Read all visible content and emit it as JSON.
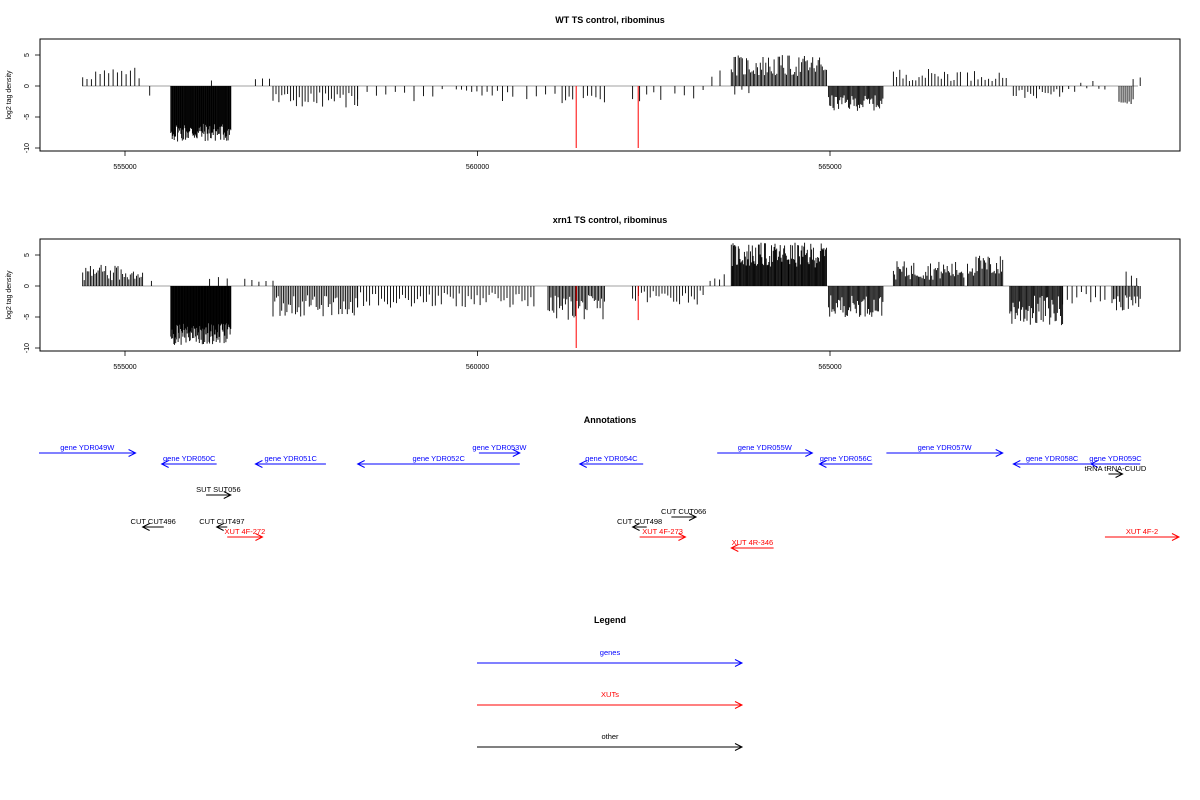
{
  "colors": {
    "genes": "#0000ff",
    "xuts": "#ff0000",
    "other": "#000000",
    "bars": "#000000",
    "red_bars": "#ff0000",
    "zero_line": "#a0a0a0"
  },
  "chart_data": [
    {
      "type": "bar",
      "title": "WT TS control, ribominus",
      "ylabel": "log2 tag density",
      "xlim": [
        553800,
        569800
      ],
      "ylim": [
        -10.5,
        7.5
      ],
      "xticks": [
        555000,
        560000,
        565000
      ],
      "xtick_labels": [
        "555000",
        "560000",
        "565000"
      ],
      "yticks": [
        -10,
        -5,
        0,
        5
      ],
      "ytick_labels": [
        "-10",
        "-5",
        "0",
        "5"
      ],
      "segments": [
        {
          "start": 554400,
          "end": 555200,
          "min": 0.8,
          "max": 3.0,
          "n": 14
        },
        {
          "start": 555300,
          "end": 555400,
          "min": -2.0,
          "max": -1.5,
          "n": 1
        },
        {
          "start": 555650,
          "end": 556500,
          "min": -9.0,
          "max": -6.0,
          "n": 90
        },
        {
          "start": 556200,
          "end": 556250,
          "min": 0.8,
          "max": 1.0,
          "n": 1
        },
        {
          "start": 556850,
          "end": 557050,
          "min": 0.5,
          "max": 2.0,
          "n": 3
        },
        {
          "start": 557100,
          "end": 558300,
          "min": -3.5,
          "max": -1.0,
          "n": 30
        },
        {
          "start": 558300,
          "end": 559500,
          "min": -2.5,
          "max": -0.5,
          "n": 10
        },
        {
          "start": 559700,
          "end": 560500,
          "min": -2.5,
          "max": -0.5,
          "n": 12
        },
        {
          "start": 560700,
          "end": 561100,
          "min": -2.5,
          "max": -1.0,
          "n": 4
        },
        {
          "start": 561200,
          "end": 561350,
          "min": -3.0,
          "max": -1.5,
          "n": 4
        },
        {
          "start": 561500,
          "end": 561800,
          "min": -3.0,
          "max": -1.0,
          "n": 6
        },
        {
          "start": 562200,
          "end": 562600,
          "min": -2.5,
          "max": -0.5,
          "n": 5
        },
        {
          "start": 562800,
          "end": 563200,
          "min": -2.0,
          "max": -0.5,
          "n": 4
        },
        {
          "start": 563300,
          "end": 563350,
          "min": 1.5,
          "max": 1.5,
          "n": 1
        },
        {
          "start": 563420,
          "end": 563460,
          "min": 2.5,
          "max": 2.5,
          "n": 1
        },
        {
          "start": 563600,
          "end": 564950,
          "min": 1.5,
          "max": 5.0,
          "n": 70
        },
        {
          "start": 563650,
          "end": 563850,
          "min": -1.5,
          "max": -0.5,
          "n": 3
        },
        {
          "start": 564980,
          "end": 565750,
          "min": -4.0,
          "max": -1.5,
          "n": 50
        },
        {
          "start": 565900,
          "end": 566850,
          "min": 0.8,
          "max": 2.8,
          "n": 22
        },
        {
          "start": 566950,
          "end": 567500,
          "min": 0.8,
          "max": 2.5,
          "n": 12
        },
        {
          "start": 567600,
          "end": 568300,
          "min": -2.0,
          "max": -0.5,
          "n": 18
        },
        {
          "start": 568300,
          "end": 568900,
          "min": -1.0,
          "max": 1.0,
          "n": 8
        },
        {
          "start": 569100,
          "end": 569300,
          "min": -3.0,
          "max": -1.0,
          "n": 8
        },
        {
          "start": 569300,
          "end": 569400,
          "min": 1.0,
          "max": 1.5,
          "n": 2
        }
      ],
      "red_bars": [
        {
          "x": 561400,
          "value": -10
        },
        {
          "x": 562280,
          "value": -10
        }
      ]
    },
    {
      "type": "bar",
      "title": "xrn1 TS control, ribominus",
      "ylabel": "log2 tag density",
      "xlim": [
        553800,
        569800
      ],
      "ylim": [
        -10.5,
        7.5
      ],
      "xticks": [
        555000,
        560000,
        565000
      ],
      "xtick_labels": [
        "555000",
        "560000",
        "565000"
      ],
      "yticks": [
        -10,
        -5,
        0,
        5
      ],
      "ytick_labels": [
        "-10",
        "-5",
        "0",
        "5"
      ],
      "segments": [
        {
          "start": 554400,
          "end": 555250,
          "min": 0.8,
          "max": 3.5,
          "n": 40
        },
        {
          "start": 555350,
          "end": 555400,
          "min": 0.8,
          "max": 1.2,
          "n": 1
        },
        {
          "start": 555650,
          "end": 556500,
          "min": -9.5,
          "max": -6.0,
          "n": 100
        },
        {
          "start": 556200,
          "end": 556450,
          "min": 0.5,
          "max": 1.5,
          "n": 3
        },
        {
          "start": 556700,
          "end": 557100,
          "min": 0.5,
          "max": 1.5,
          "n": 5
        },
        {
          "start": 557100,
          "end": 558300,
          "min": -5.0,
          "max": -1.5,
          "n": 50
        },
        {
          "start": 558300,
          "end": 560800,
          "min": -3.5,
          "max": -1.0,
          "n": 60
        },
        {
          "start": 561000,
          "end": 561800,
          "min": -5.5,
          "max": -1.5,
          "n": 40
        },
        {
          "start": 562200,
          "end": 563200,
          "min": -3.0,
          "max": -0.5,
          "n": 25
        },
        {
          "start": 563300,
          "end": 563500,
          "min": 0.8,
          "max": 2.0,
          "n": 4
        },
        {
          "start": 563600,
          "end": 564950,
          "min": 3.0,
          "max": 7.0,
          "n": 110
        },
        {
          "start": 564980,
          "end": 565750,
          "min": -5.0,
          "max": -1.5,
          "n": 50
        },
        {
          "start": 565900,
          "end": 566900,
          "min": 1.0,
          "max": 4.0,
          "n": 60
        },
        {
          "start": 566950,
          "end": 567450,
          "min": 1.5,
          "max": 5.0,
          "n": 30
        },
        {
          "start": 567550,
          "end": 568300,
          "min": -6.5,
          "max": -1.5,
          "n": 50
        },
        {
          "start": 568300,
          "end": 568900,
          "min": -3.0,
          "max": -0.8,
          "n": 10
        },
        {
          "start": 569000,
          "end": 569400,
          "min": -4.0,
          "max": -1.5,
          "n": 20
        },
        {
          "start": 569200,
          "end": 569350,
          "min": 1.0,
          "max": 2.5,
          "n": 3
        }
      ],
      "red_bars": [
        {
          "x": 561400,
          "value": -10
        },
        {
          "x": 562280,
          "value": -5.5
        }
      ]
    }
  ],
  "annotations": {
    "title": "Annotations",
    "features": [
      {
        "label": "gene YDR049W",
        "kind": "genes",
        "strand": "+",
        "start": 553780,
        "end": 555150,
        "row": 0
      },
      {
        "label": "gene YDR050C",
        "kind": "genes",
        "strand": "-",
        "start": 555520,
        "end": 556300,
        "row": 1
      },
      {
        "label": "gene YDR051C",
        "kind": "genes",
        "strand": "-",
        "start": 556850,
        "end": 557850,
        "row": 1
      },
      {
        "label": "gene YDR052C",
        "kind": "genes",
        "strand": "-",
        "start": 558300,
        "end": 560600,
        "row": 1
      },
      {
        "label": "gene YDR053W",
        "kind": "genes",
        "strand": "+",
        "start": 560020,
        "end": 560600,
        "row": 0
      },
      {
        "label": "gene YDR054C",
        "kind": "genes",
        "strand": "-",
        "start": 561450,
        "end": 562350,
        "row": 1
      },
      {
        "label": "gene YDR055W",
        "kind": "genes",
        "strand": "+",
        "start": 563400,
        "end": 564750,
        "row": 0
      },
      {
        "label": "gene YDR056C",
        "kind": "genes",
        "strand": "-",
        "start": 564850,
        "end": 565600,
        "row": 1
      },
      {
        "label": "gene YDR057W",
        "kind": "genes",
        "strand": "+",
        "start": 565800,
        "end": 567450,
        "row": 0
      },
      {
        "label": "gene YDR058C",
        "kind": "genes",
        "strand": "-",
        "start": 567600,
        "end": 568700,
        "row": 1
      },
      {
        "label": "gene YDR059C",
        "kind": "genes",
        "strand": "-",
        "start": 568700,
        "end": 569400,
        "row": 1
      },
      {
        "label": "tRNA tRNA-CUUD",
        "kind": "other",
        "strand": "+",
        "start": 568950,
        "end": 569150,
        "row": 2
      },
      {
        "label": "SUT SUT056",
        "kind": "other",
        "strand": "+",
        "start": 556150,
        "end": 556500,
        "row": 3
      },
      {
        "label": "CUT CUT066",
        "kind": "other",
        "strand": "+",
        "start": 562750,
        "end": 563100,
        "row": 4
      },
      {
        "label": "CUT CUT496",
        "kind": "other",
        "strand": "-",
        "start": 555250,
        "end": 555550,
        "row": 5
      },
      {
        "label": "CUT CUT497",
        "kind": "other",
        "strand": "-",
        "start": 556300,
        "end": 556450,
        "row": 5
      },
      {
        "label": "CUT CUT498",
        "kind": "other",
        "strand": "-",
        "start": 562200,
        "end": 562400,
        "row": 5
      },
      {
        "label": "XUT 4F-272",
        "kind": "xuts",
        "strand": "+",
        "start": 556450,
        "end": 556950,
        "row": 6
      },
      {
        "label": "XUT 4F-273",
        "kind": "xuts",
        "strand": "+",
        "start": 562300,
        "end": 562950,
        "row": 6
      },
      {
        "label": "XUT 4R-346",
        "kind": "xuts",
        "strand": "-",
        "start": 563600,
        "end": 564200,
        "row": 7
      },
      {
        "label": "XUT 4F-2",
        "kind": "xuts",
        "strand": "+",
        "start": 568900,
        "end": 569950,
        "row": 6
      }
    ]
  },
  "legend": {
    "title": "Legend",
    "entries": [
      {
        "label": "genes",
        "kind": "genes"
      },
      {
        "label": "XUTs",
        "kind": "xuts"
      },
      {
        "label": "other",
        "kind": "other"
      }
    ]
  }
}
